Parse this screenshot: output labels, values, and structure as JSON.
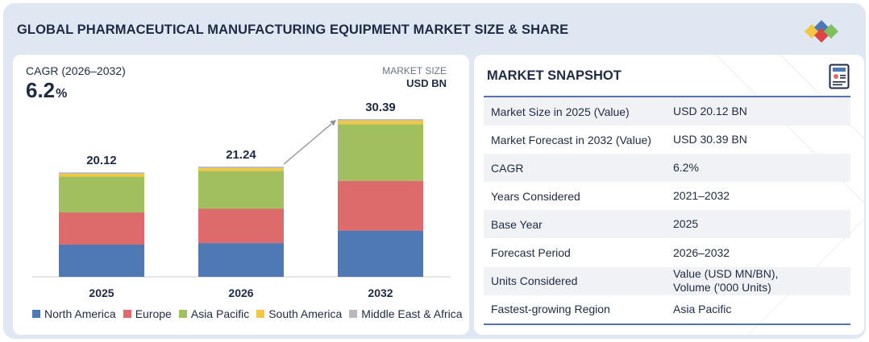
{
  "title": "GLOBAL PHARMACEUTICAL MANUFACTURING EQUIPMENT MARKET SIZE & SHARE",
  "logo_icon": "diamond-cluster-logo",
  "cagr": {
    "label": "CAGR (2026–2032)",
    "value": "6.2",
    "unit": "%"
  },
  "market_size": {
    "label": "MARKET SIZE",
    "unit": "USD BN"
  },
  "colors": {
    "north_america": "#4f79b5",
    "europe": "#dd6b6b",
    "asia_pacific": "#a2bf5f",
    "south_america": "#f2c744",
    "middle_east_africa": "#b9b9bd",
    "accent": "#5573b2"
  },
  "chart_data": {
    "type": "bar",
    "stacked": true,
    "title": "Market Size (USD BN)",
    "categories": [
      "2025",
      "2026",
      "2032"
    ],
    "totals": [
      "20.12",
      "21.24",
      "30.39"
    ],
    "total_values": [
      20.12,
      21.24,
      30.39
    ],
    "series": [
      {
        "name": "North America",
        "values": [
          6.2,
          6.5,
          8.9
        ]
      },
      {
        "name": "Europe",
        "values": [
          6.2,
          6.6,
          9.6
        ]
      },
      {
        "name": "Asia Pacific",
        "values": [
          6.9,
          7.3,
          10.9
        ]
      },
      {
        "name": "South America",
        "values": [
          0.55,
          0.56,
          0.69
        ]
      },
      {
        "name": "Middle East & Africa",
        "values": [
          0.27,
          0.28,
          0.3
        ]
      }
    ],
    "ylim": [
      0,
      30.39
    ],
    "xlabel": "",
    "ylabel": "",
    "growth_arrow": {
      "from": "2026",
      "to": "2032"
    }
  },
  "snapshot": {
    "title": "MARKET SNAPSHOT",
    "icon": "report-icon",
    "rows": [
      {
        "key": "Market Size in 2025 (Value)",
        "value": "USD 20.12 BN"
      },
      {
        "key": "Market Forecast in 2032 (Value)",
        "value": "USD 30.39 BN"
      },
      {
        "key": "CAGR",
        "value": "6.2%"
      },
      {
        "key": "Years Considered",
        "value": "2021–2032"
      },
      {
        "key": "Base Year",
        "value": "2025"
      },
      {
        "key": "Forecast Period",
        "value": "2026–2032"
      },
      {
        "key": "Units Considered",
        "value": "Value (USD MN/BN),",
        "value2": "Volume ('000 Units)"
      },
      {
        "key": "Fastest-growing Region",
        "value": "Asia Pacific"
      }
    ]
  }
}
